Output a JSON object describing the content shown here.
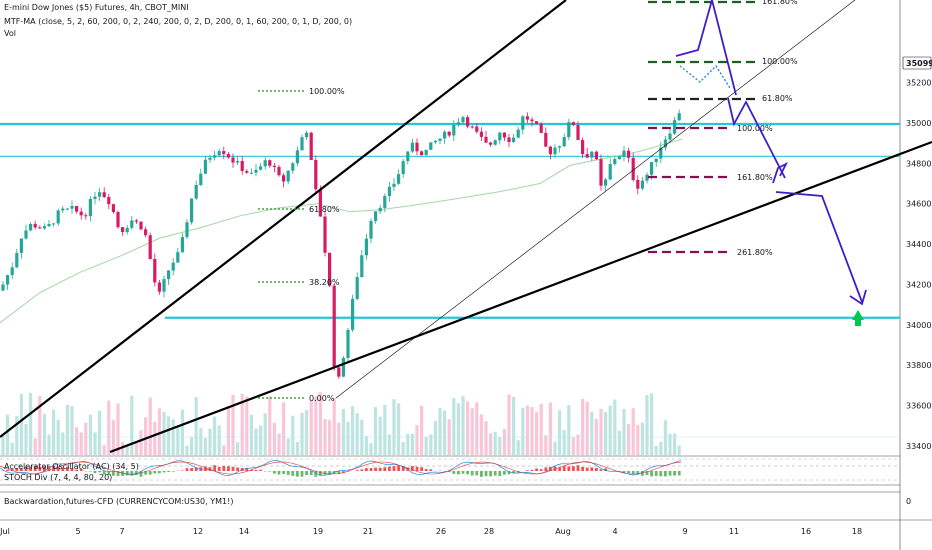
{
  "header": {
    "title": "E-mini Dow Jones ($5) Futures, 4h, CBOT_MINI",
    "indicator_ma": "MTF-MA (close, 5, 2, 60, 200, 0, 2, 240, 200, 0, 2, D, 200, 0, 1, 60, 200, 0, 1, D, 200, 0)",
    "indicator_vol": "Vol"
  },
  "panes": {
    "ac_label": "Accelerator Oscillator (AC) (34, 5)",
    "stoch_label": "STOCH Div (7, 4, 4, 80, 20)",
    "backwardation_label": "Backwardation,futures-CFD (CURRENCYCOM:US30, YM1!)",
    "backwardation_zero": "0"
  },
  "price_badge": "35099",
  "colors": {
    "bull": "#26a69a",
    "bear": "#d81b60",
    "cyan": "#26c6da",
    "ma": "#a5d6a7",
    "proj": "#3f1dcb",
    "green_dash": "#1b5e20",
    "maroon_dash": "#880e4f"
  },
  "chart_data": {
    "type": "candlestick",
    "title": "E-mini Dow Jones ($5) Futures, 4h, CBOT_MINI",
    "y_axis": {
      "ticks": [
        "35200",
        "35000",
        "34800",
        "34600",
        "34400",
        "34200",
        "34000",
        "33800",
        "33600",
        "33400"
      ],
      "ylim": [
        33330,
        35560
      ]
    },
    "x_axis": {
      "ticks": [
        "Jul",
        "5",
        "7",
        "12",
        "14",
        "19",
        "21",
        "26",
        "28",
        "Aug",
        "4",
        "9",
        "11",
        "16",
        "18"
      ]
    },
    "key_prices": {
      "current": 35099,
      "resistance_band": 34995,
      "support_band_upper": 34835,
      "support_target": 34035,
      "low": 33630,
      "high": 35065
    },
    "fib_labels": {
      "retracement": [
        "100.00%",
        "61.80%",
        "38.20%",
        "0.00%"
      ],
      "extension_up": [
        "161.80%",
        "100.00%",
        "61.80%"
      ],
      "extension_down": [
        "100.00%",
        "161.80%",
        "261.80%"
      ]
    },
    "annotations": {
      "arrow_target": "down",
      "target_marker": "up-arrow"
    }
  }
}
